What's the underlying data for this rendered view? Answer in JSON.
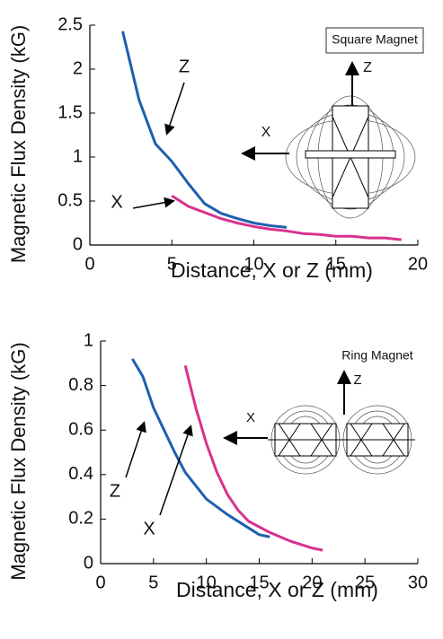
{
  "chart_data": [
    {
      "type": "line",
      "x_label": "Distance, X or Z (mm)",
      "y_label": "Magnetic Flux Density (kG)",
      "xlim": [
        0,
        20
      ],
      "xticks": [
        0,
        5,
        10,
        15,
        20
      ],
      "ylim": [
        0,
        2.5
      ],
      "yticks": [
        0,
        0.5,
        1,
        1.5,
        2,
        2.5
      ],
      "annotations": [
        "Square Magnet",
        "Z",
        "X"
      ],
      "series": [
        {
          "name": "Z",
          "color": "#1f5fae",
          "x": [
            2,
            3,
            4,
            5,
            6,
            7,
            8,
            9,
            10,
            11,
            12
          ],
          "values": [
            2.43,
            1.65,
            1.15,
            0.95,
            0.7,
            0.47,
            0.36,
            0.3,
            0.25,
            0.22,
            0.2
          ]
        },
        {
          "name": "X",
          "color": "#d9318f",
          "x": [
            5,
            6,
            7,
            8,
            9,
            10,
            11,
            12,
            13,
            14,
            15,
            16,
            17,
            18,
            19
          ],
          "values": [
            0.56,
            0.44,
            0.37,
            0.3,
            0.25,
            0.21,
            0.18,
            0.16,
            0.13,
            0.12,
            0.1,
            0.1,
            0.08,
            0.08,
            0.06
          ]
        }
      ]
    },
    {
      "type": "line",
      "x_label": "Distance, X or Z (mm)",
      "y_label": "Magnetic Flux Density (kG)",
      "xlim": [
        0,
        30
      ],
      "xticks": [
        0,
        5,
        10,
        15,
        20,
        25,
        30
      ],
      "ylim": [
        0,
        1
      ],
      "yticks": [
        0,
        0.2,
        0.4,
        0.6,
        0.8,
        1
      ],
      "annotations": [
        "Ring Magnet",
        "Z",
        "X"
      ],
      "series": [
        {
          "name": "Z",
          "color": "#1f5fae",
          "x": [
            3,
            4,
            5,
            6,
            7,
            8,
            9,
            10,
            12,
            14,
            15,
            16
          ],
          "values": [
            0.92,
            0.84,
            0.7,
            0.6,
            0.5,
            0.41,
            0.35,
            0.29,
            0.22,
            0.16,
            0.13,
            0.12
          ]
        },
        {
          "name": "X",
          "color": "#d9318f",
          "x": [
            8,
            9,
            10,
            11,
            12,
            13,
            14,
            16,
            18,
            20,
            21
          ],
          "values": [
            0.89,
            0.7,
            0.54,
            0.41,
            0.31,
            0.24,
            0.19,
            0.14,
            0.1,
            0.07,
            0.06
          ]
        }
      ]
    }
  ]
}
